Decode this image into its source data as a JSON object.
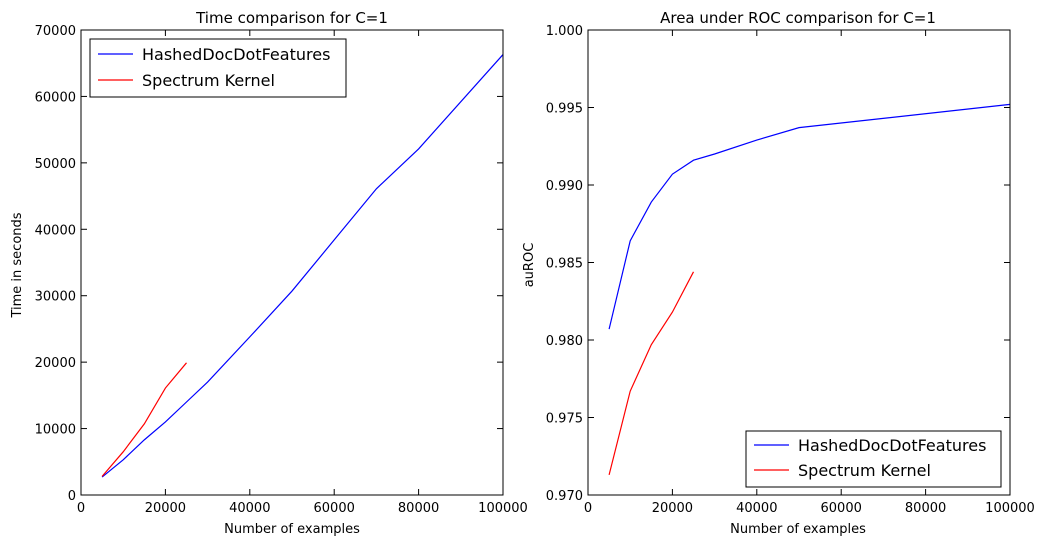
{
  "chart_data": [
    {
      "type": "line",
      "title": "Time comparison for C=1",
      "xlabel": "Number of examples",
      "ylabel": "Time in seconds",
      "xlim": [
        0,
        100000
      ],
      "ylim": [
        0,
        70000
      ],
      "xticks": [
        "0",
        "20000",
        "40000",
        "60000",
        "80000",
        "100000"
      ],
      "yticks": [
        "0",
        "10000",
        "20000",
        "30000",
        "40000",
        "50000",
        "60000",
        "70000"
      ],
      "grid": false,
      "legend_position": "top-left",
      "series": [
        {
          "name": "HashedDocDotFeatures",
          "color": "#0000ff",
          "points": [
            [
              5000,
              2700
            ],
            [
              10000,
              5300
            ],
            [
              15000,
              8300
            ],
            [
              20000,
              11000
            ],
            [
              25000,
              14000
            ],
            [
              30000,
              17000
            ],
            [
              40000,
              23800
            ],
            [
              50000,
              30700
            ],
            [
              60000,
              38400
            ],
            [
              70000,
              46100
            ],
            [
              80000,
              52100
            ],
            [
              100000,
              66300
            ]
          ]
        },
        {
          "name": "Spectrum Kernel",
          "color": "#ff0000",
          "points": [
            [
              5000,
              2800
            ],
            [
              10000,
              6500
            ],
            [
              15000,
              10700
            ],
            [
              20000,
              16100
            ],
            [
              25000,
              19900
            ]
          ]
        }
      ]
    },
    {
      "type": "line",
      "title": "Area under ROC comparison for C=1",
      "xlabel": "Number of examples",
      "ylabel": "auROC",
      "xlim": [
        0,
        100000
      ],
      "ylim": [
        0.97,
        1.0
      ],
      "xticks": [
        "0",
        "20000",
        "40000",
        "60000",
        "80000",
        "100000"
      ],
      "yticks": [
        "0.970",
        "0.975",
        "0.980",
        "0.985",
        "0.990",
        "0.995",
        "1.000"
      ],
      "grid": false,
      "legend_position": "bottom-right",
      "series": [
        {
          "name": "HashedDocDotFeatures",
          "color": "#0000ff",
          "points": [
            [
              5000,
              0.9807
            ],
            [
              10000,
              0.9864
            ],
            [
              15000,
              0.9889
            ],
            [
              20000,
              0.9907
            ],
            [
              25000,
              0.9916
            ],
            [
              30000,
              0.992
            ],
            [
              40000,
              0.9929
            ],
            [
              50000,
              0.9937
            ],
            [
              100000,
              0.9952
            ]
          ]
        },
        {
          "name": "Spectrum Kernel",
          "color": "#ff0000",
          "points": [
            [
              5000,
              0.9713
            ],
            [
              10000,
              0.9767
            ],
            [
              15000,
              0.9797
            ],
            [
              20000,
              0.9818
            ],
            [
              25000,
              0.9844
            ]
          ]
        }
      ]
    }
  ]
}
